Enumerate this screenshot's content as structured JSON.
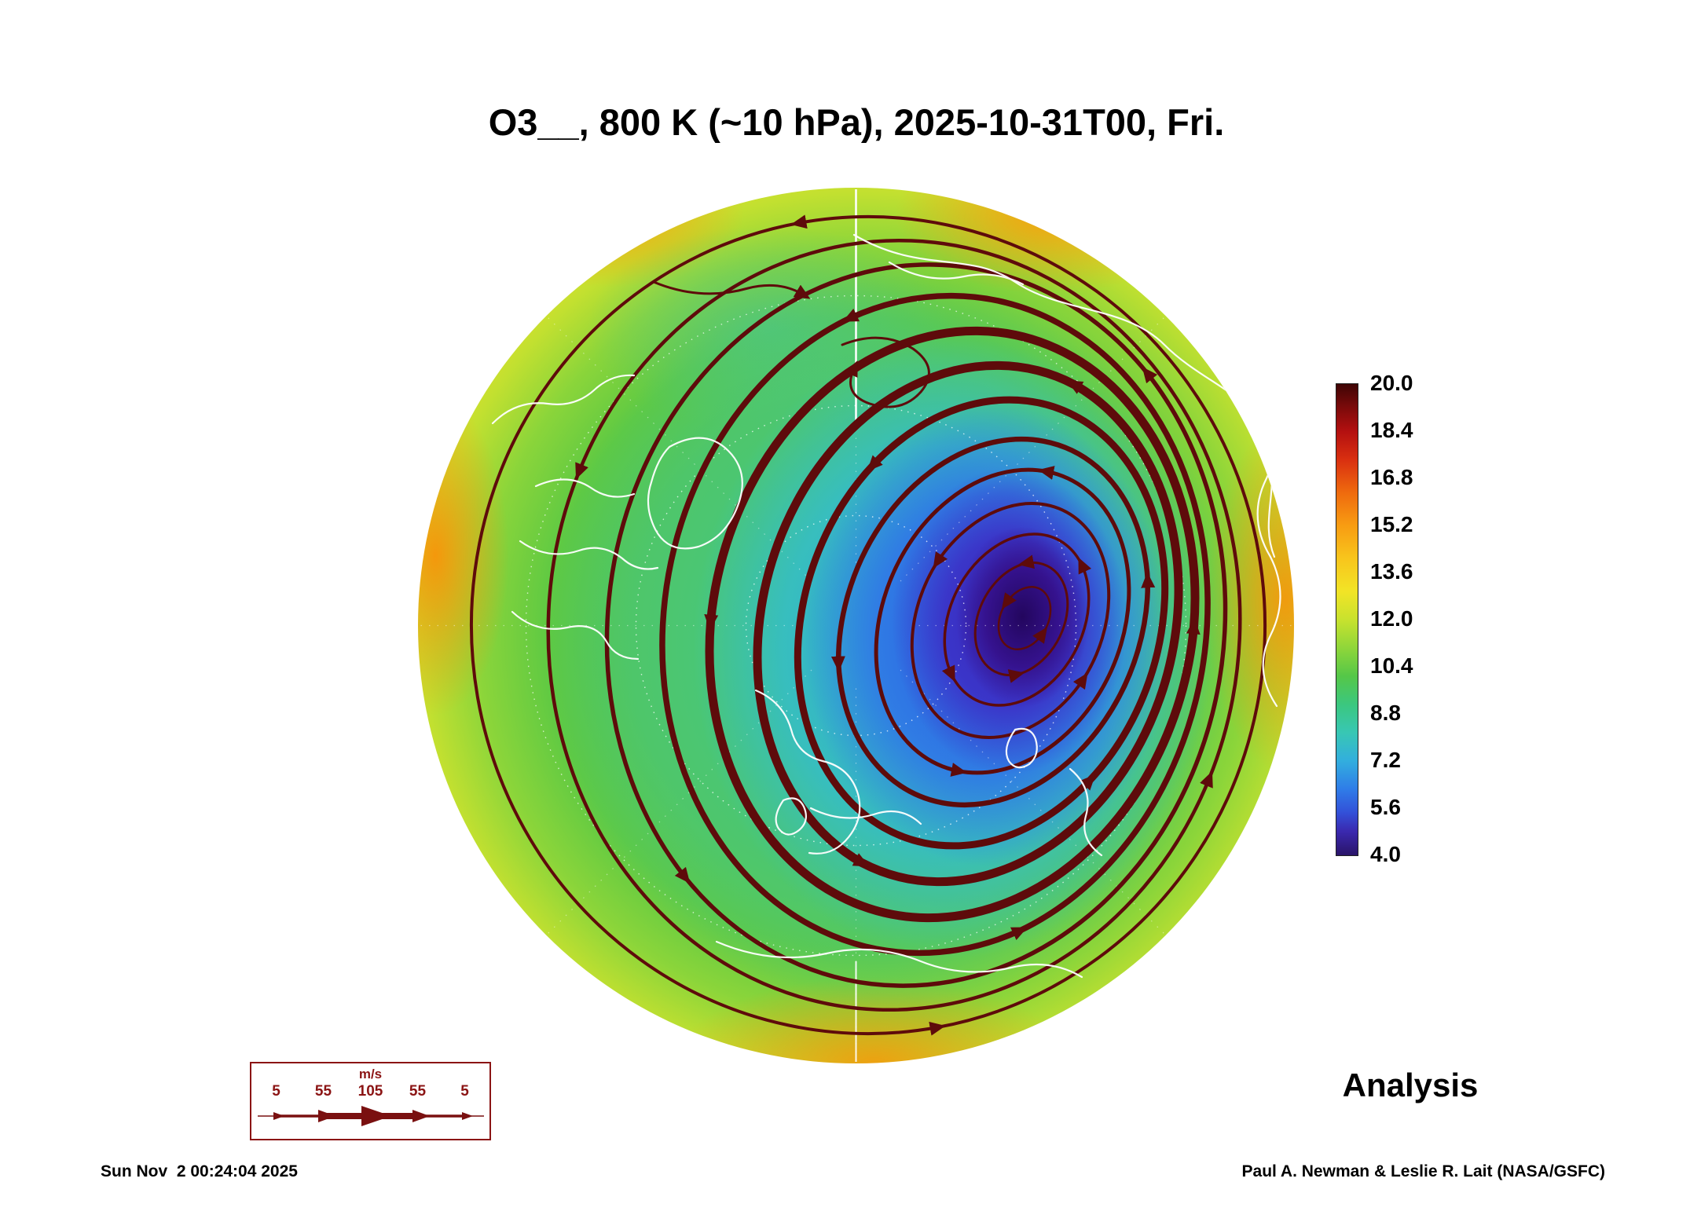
{
  "title": "O3__, 800 K (~10 hPa), 2025-10-31T00, Fri.",
  "colorbar": {
    "ticks": [
      "20.0",
      "18.4",
      "16.8",
      "15.2",
      "13.6",
      "12.0",
      "10.4",
      "8.8",
      "7.2",
      "5.6",
      "4.0"
    ]
  },
  "wind_legend": {
    "units": "m/s",
    "values": [
      "5",
      "55",
      "105",
      "55",
      "5"
    ]
  },
  "analysis_label": "Analysis",
  "timestamp": "Sun Nov  2 00:24:04 2025",
  "credit": "Paul A. Newman & Leslie R. Lait (NASA/GSFC)",
  "chart_data": {
    "type": "heatmap",
    "title": "O3__, 800 K (~10 hPa), 2025-10-31T00, Fri.",
    "projection": "north polar stereographic",
    "colorbar_ticks": [
      20.0,
      18.4,
      16.8,
      15.2,
      13.6,
      12.0,
      10.4,
      8.8,
      7.2,
      5.6,
      4.0
    ],
    "colorbar_range": [
      4.0,
      20.0
    ],
    "wind_scale_ms": [
      5,
      55,
      105,
      55,
      5
    ],
    "annotations": [
      "Analysis"
    ],
    "description": "Ozone field: dark blue/purple polar-vortex minimum (~4-7) offset off the pole; values rise outward through cyan and green (~9-13) to a yellow-orange ring (~14-16) at the map rim; dark maroon streamlines with arrowheads circle the vortex counterclockwise, thickest at the vortex edge jet; white coastlines and dotted latitude/longitude graticule overlaid."
  }
}
